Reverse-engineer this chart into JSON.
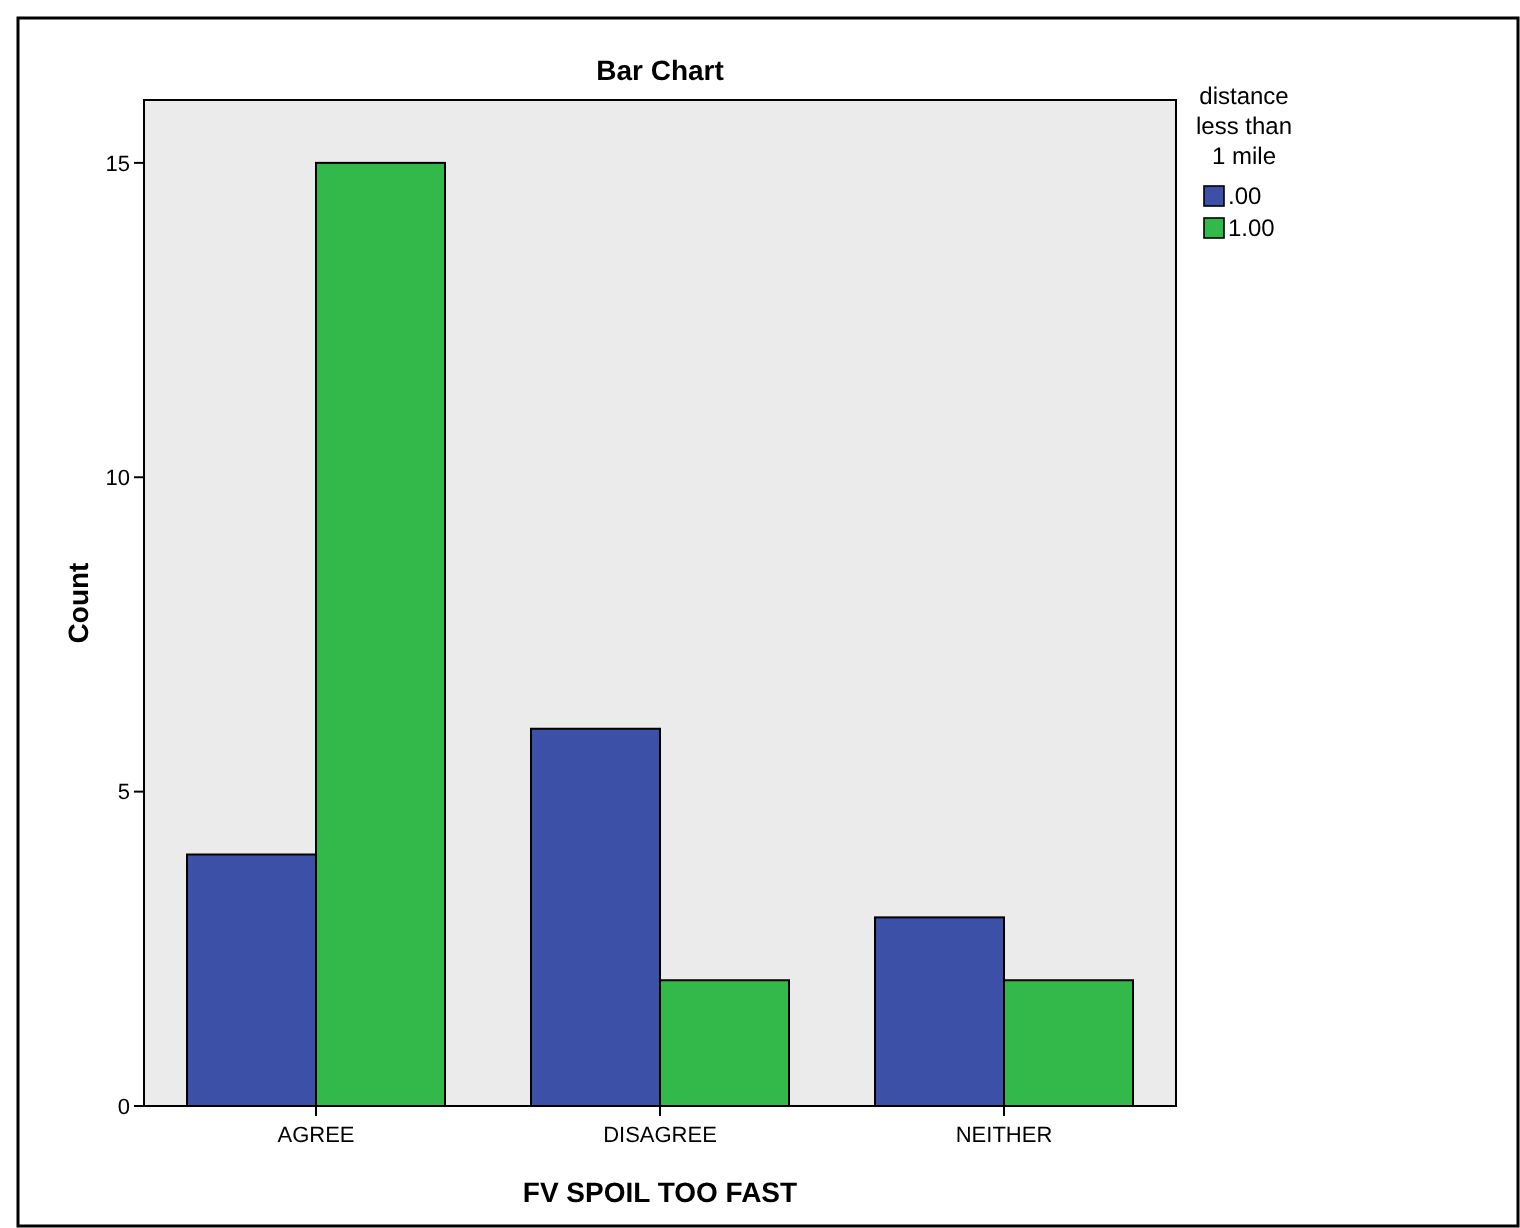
{
  "chart_data": {
    "type": "bar",
    "title": "Bar Chart",
    "xlabel": "FV SPOIL TOO FAST",
    "ylabel": "Count",
    "legend_title": "distance less than 1 mile",
    "categories": [
      "AGREE",
      "DISAGREE",
      "NEITHER"
    ],
    "series": [
      {
        "name": ".00",
        "color": "#3c50a8",
        "values": [
          4,
          6,
          3
        ]
      },
      {
        "name": "1.00",
        "color": "#33b84a",
        "values": [
          15,
          2,
          2
        ]
      }
    ],
    "ylim": [
      0,
      16
    ],
    "yticks": [
      0,
      5,
      10,
      15
    ],
    "grid": false,
    "legend": "right"
  }
}
